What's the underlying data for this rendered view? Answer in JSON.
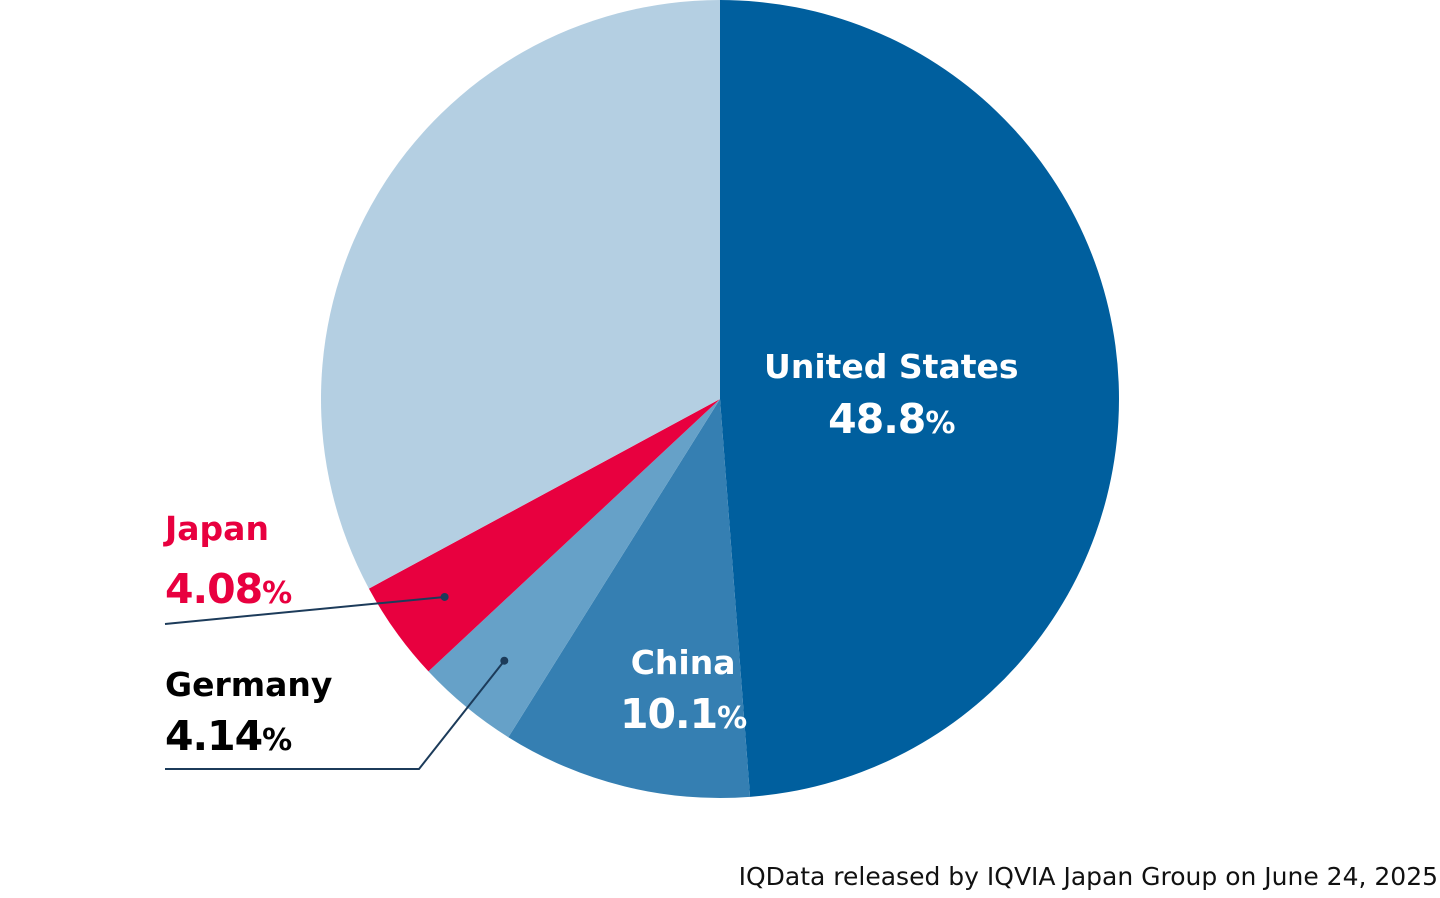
{
  "chart_data": {
    "type": "pie",
    "unit": "%",
    "slices": [
      {
        "label": "United States",
        "value": 48.8,
        "display": "48.8",
        "color": "#005f9e",
        "labeled": true
      },
      {
        "label": "China",
        "value": 10.1,
        "display": "10.1",
        "color": "#357fb2",
        "labeled": true
      },
      {
        "label": "Germany",
        "value": 4.14,
        "display": "4.14",
        "color": "#66a1c8",
        "labeled": true
      },
      {
        "label": "Japan",
        "value": 4.08,
        "display": "4.08",
        "color": "#e8003f",
        "labeled": true
      },
      {
        "label": "",
        "value": 32.88,
        "display": "",
        "color": "#b4cfe2",
        "labeled": false
      }
    ],
    "label_colors": {
      "United States": "#ffffff",
      "China": "#ffffff",
      "Germany": "#000000",
      "Japan": "#e8003f"
    },
    "leader_line_color": "#1c3b5a"
  },
  "source_note": "IQData released by IQVIA Japan Group on June 24, 2025"
}
